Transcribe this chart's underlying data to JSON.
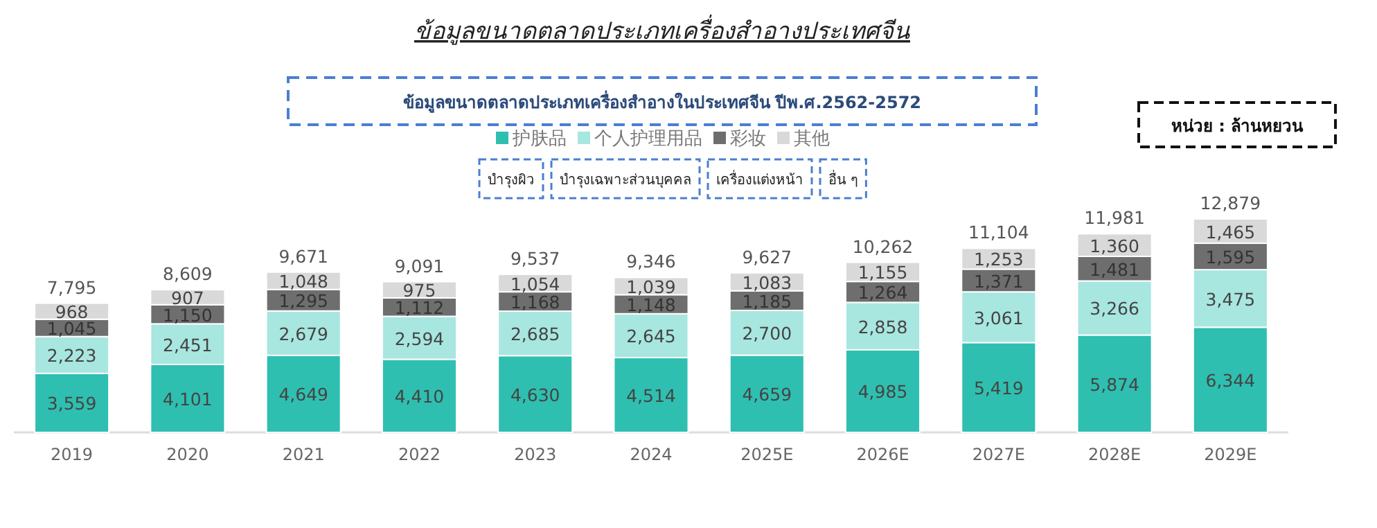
{
  "chart_data": {
    "type": "bar",
    "stacked": true,
    "legend": "top",
    "title": "ข้อมูลขนาดตลาดประเภทเครื่องสำอางประเทศจีน",
    "subtitle": "ข้อมูลขนาดตลาดประเภทเครื่องสำอางในประเทศจีน ปีพ.ศ.2562-2572",
    "annotations": [
      "หน่วย : ล้านหยวน",
      "บำรุงผิว",
      "บำรุงเฉพาะส่วนบุคคล",
      "เครื่องแต่งหน้า",
      "อื่น ๆ"
    ],
    "categories": [
      "2019",
      "2020",
      "2021",
      "2022",
      "2023",
      "2024",
      "2025E",
      "2026E",
      "2027E",
      "2028E",
      "2029E"
    ],
    "series": [
      {
        "name": "护肤品",
        "color": "#2fbfb0",
        "values": [
          3559,
          4101,
          4649,
          4410,
          4630,
          4514,
          4659,
          4985,
          5419,
          5874,
          6344
        ],
        "value_labels": [
          "3,559",
          "4,101",
          "4,649",
          "4,410",
          "4,630",
          "4,514",
          "4,659",
          "4,985",
          "5,419",
          "5,874",
          "6,344"
        ]
      },
      {
        "name": "个人护理用品",
        "color": "#a8e6e0",
        "values": [
          2223,
          2451,
          2679,
          2594,
          2685,
          2645,
          2700,
          2858,
          3061,
          3266,
          3475
        ],
        "value_labels": [
          "2,223",
          "2,451",
          "2,679",
          "2,594",
          "2,685",
          "2,645",
          "2,700",
          "2,858",
          "3,061",
          "3,266",
          "3,475"
        ]
      },
      {
        "name": "彩妆",
        "color": "#6e6e6e",
        "values": [
          1045,
          1150,
          1295,
          1112,
          1168,
          1148,
          1185,
          1264,
          1371,
          1481,
          1595
        ],
        "value_labels": [
          "1,045",
          "1,150",
          "1,295",
          "1,112",
          "1,168",
          "1,148",
          "1,185",
          "1,264",
          "1,371",
          "1,481",
          "1,595"
        ]
      },
      {
        "name": "其他",
        "color": "#d9d9d9",
        "values": [
          968,
          907,
          1048,
          975,
          1054,
          1039,
          1083,
          1155,
          1253,
          1360,
          1465
        ],
        "value_labels": [
          "968",
          "907",
          "1,048",
          "975",
          "1,054",
          "1,039",
          "1,083",
          "1,155",
          "1,253",
          "1,360",
          "1,465"
        ]
      }
    ],
    "totals": [
      "7,795",
      "8,609",
      "9,671",
      "9,091",
      "9,537",
      "9,346",
      "9,627",
      "10,262",
      "11,104",
      "11,981",
      "12,879"
    ]
  }
}
